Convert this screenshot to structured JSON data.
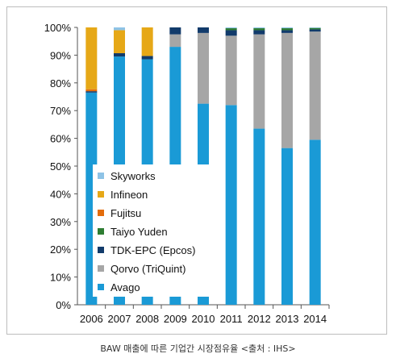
{
  "caption": "BAW 매출에 따른 기업간 시장점유율 <출처 : IHS>",
  "chart_data": {
    "type": "bar",
    "stacked": true,
    "categories": [
      "2006",
      "2007",
      "2008",
      "2009",
      "2010",
      "2011",
      "2012",
      "2013",
      "2014"
    ],
    "y_ticks": [
      "0%",
      "10%",
      "20%",
      "30%",
      "40%",
      "50%",
      "60%",
      "70%",
      "80%",
      "90%",
      "100%"
    ],
    "ylim": [
      0,
      100
    ],
    "legend_position": "left-inside",
    "series": [
      {
        "name": "Avago",
        "color": "#1a9ad6",
        "values": [
          76.5,
          89.5,
          88.5,
          93,
          72.5,
          72,
          63.5,
          56.5,
          59.5
        ]
      },
      {
        "name": "Qorvo (TriQuint)",
        "color": "#a6a6a6",
        "values": [
          0,
          0,
          0,
          4.5,
          25.5,
          25,
          34,
          41.5,
          39
        ]
      },
      {
        "name": "TDK-EPC (Epcos)",
        "color": "#123b6b",
        "values": [
          0.5,
          1.2,
          1.2,
          2.5,
          2,
          2,
          1.5,
          1,
          0.8
        ]
      },
      {
        "name": "Taiyo Yuden",
        "color": "#2e7d32",
        "values": [
          0,
          0,
          0,
          0,
          0,
          0.7,
          0.7,
          0.7,
          0.5
        ]
      },
      {
        "name": "Fujitsu",
        "color": "#e36c0a",
        "values": [
          0.7,
          0,
          0,
          0,
          0,
          0,
          0,
          0,
          0
        ]
      },
      {
        "name": "Infineon",
        "color": "#e6a817",
        "values": [
          22.3,
          8.3,
          10.3,
          0,
          0,
          0,
          0,
          0,
          0
        ]
      },
      {
        "name": "Skyworks",
        "color": "#8ec3e6",
        "values": [
          0,
          1,
          0,
          0,
          0,
          0.3,
          0.3,
          0.3,
          0.2
        ]
      }
    ]
  }
}
